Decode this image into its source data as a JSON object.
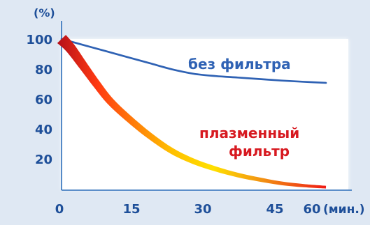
{
  "chart_data": {
    "type": "line",
    "title": "",
    "xlabel": "(мин.)",
    "ylabel": "(%)",
    "xlim": [
      0,
      60
    ],
    "ylim": [
      0,
      100
    ],
    "x_ticks": [
      "0",
      "15",
      "30",
      "45",
      "60"
    ],
    "y_ticks": [
      "20",
      "40",
      "60",
      "80",
      "100"
    ],
    "grid": false,
    "colors": {
      "background": "#dfe8f3",
      "plot_area": "#ffffff",
      "axis": "#2e6fba",
      "tick_text": "#1e4f99",
      "no_filter": "#2f62b4",
      "no_filter_label": "#2f62b4",
      "plasma_label": "#d71920",
      "plasma_start": "#b50f1a",
      "plasma_mid": "#ff3a12",
      "plasma_yellow": "#ffe000",
      "plasma_end": "#ef1b15"
    },
    "series": [
      {
        "name": "без фильтра",
        "x": [
          0,
          5,
          10,
          15,
          20,
          25,
          30,
          35,
          40,
          45,
          50,
          55,
          60
        ],
        "y": [
          100,
          96,
          92,
          88,
          84,
          80,
          77,
          75.5,
          74.5,
          73.5,
          72.5,
          71.7,
          71
        ]
      },
      {
        "name": "плазменный фильтр",
        "x": [
          0,
          2,
          5,
          8,
          11,
          15,
          20,
          25,
          30,
          35,
          40,
          45,
          50,
          55,
          60
        ],
        "y": [
          100,
          94,
          82,
          70,
          59,
          48,
          36,
          26,
          19,
          14,
          10,
          7,
          4.5,
          3,
          2
        ]
      }
    ],
    "labels": {
      "no_filter": "без фильтра",
      "plasma_line1": "плазменный",
      "plasma_line2": "фильтр"
    }
  }
}
